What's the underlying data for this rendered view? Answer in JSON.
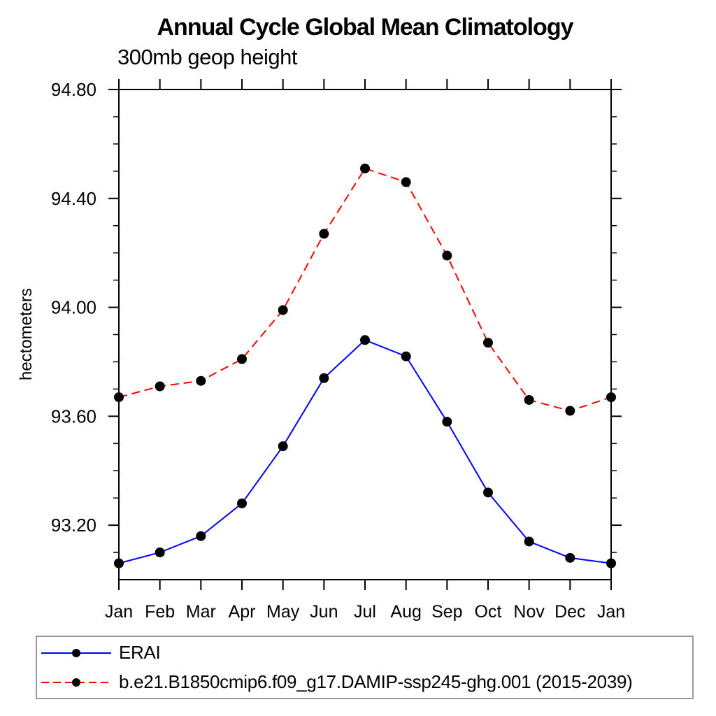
{
  "title": "Annual Cycle Global Mean Climatology",
  "subtitle": "300mb geop height",
  "chart_data": {
    "type": "line",
    "title": "Annual Cycle Global Mean Climatology",
    "subtitle": "300mb geop height",
    "xlabel": "",
    "ylabel": "hectometers",
    "x_tick_labels": [
      "Jan",
      "Feb",
      "Mar",
      "Apr",
      "May",
      "Jun",
      "Jul",
      "Aug",
      "Sep",
      "Oct",
      "Nov",
      "Dec",
      "Jan"
    ],
    "ylim": [
      93.0,
      94.8
    ],
    "y_major_ticks": [
      93.2,
      93.6,
      94.0,
      94.4,
      94.8
    ],
    "y_major_tick_labels": [
      "93.20",
      "93.60",
      "94.00",
      "94.40",
      "94.80"
    ],
    "y_minor_step": 0.1,
    "grid": false,
    "legend_position": "bottom",
    "series": [
      {
        "name": "ERAI",
        "color": "#0000ff",
        "line_style": "solid",
        "marker": "circle",
        "marker_color": "#000000",
        "values": [
          93.06,
          93.1,
          93.16,
          93.28,
          93.49,
          93.74,
          93.88,
          93.82,
          93.58,
          93.32,
          93.14,
          93.08,
          93.06
        ]
      },
      {
        "name": "b.e21.B1850cmip6.f09_g17.DAMIP-ssp245-ghg.001 (2015-2039)",
        "color": "#ff0000",
        "line_style": "dashed",
        "marker": "circle",
        "marker_color": "#000000",
        "values": [
          93.67,
          93.71,
          93.73,
          93.81,
          93.99,
          94.27,
          94.51,
          94.46,
          94.19,
          93.87,
          93.66,
          93.62,
          93.67
        ]
      }
    ],
    "colors": {
      "axis": "#000000",
      "legend_border": "#9a9a9a"
    }
  }
}
